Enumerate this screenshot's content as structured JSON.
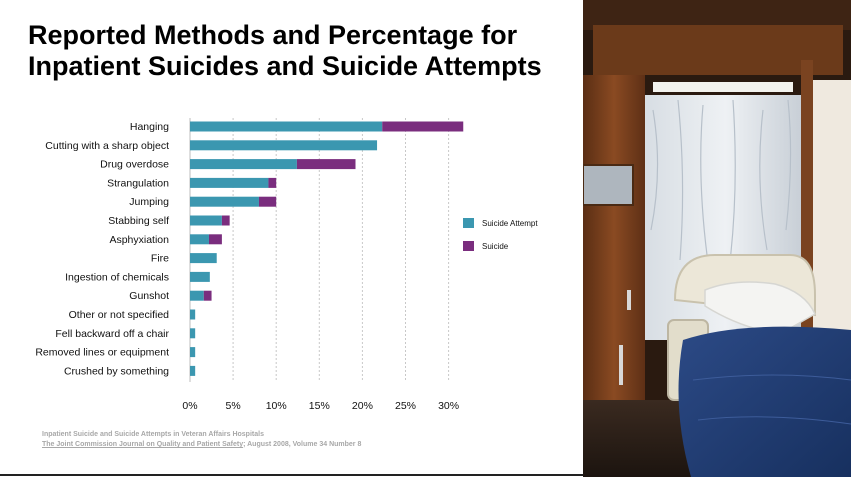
{
  "title": {
    "line1": "Reported Methods and Percentage for",
    "line2": "Inpatient Suicides and Suicide Attempts"
  },
  "source": {
    "line1": "Inpatient Suicide and Suicide Attempts in Veteran Affairs Hospitals",
    "journal": "The Joint Commission Journal on Quality and Patient Safety",
    "line2_rest": "; August 2008, Volume 34 Number 8"
  },
  "colors": {
    "suicide_attempt": "#3b97b0",
    "suicide": "#7a2d7e"
  },
  "chart_data": {
    "type": "bar",
    "orientation": "horizontal",
    "stacked": true,
    "categories": [
      "Hanging",
      "Cutting with a sharp object",
      "Drug overdose",
      "Strangulation",
      "Jumping",
      "Stabbing self",
      "Asphyxiation",
      "Fire",
      "Ingestion of chemicals",
      "Gunshot",
      "Other or not specified",
      "Fell backward off a chair",
      "Removed lines or equipment",
      "Crushed by something"
    ],
    "series": [
      {
        "name": "Suicide Attempt",
        "values": [
          22.3,
          21.7,
          12.4,
          9.1,
          8.0,
          3.7,
          2.2,
          3.1,
          2.3,
          1.6,
          0.6,
          0.6,
          0.6,
          0.6
        ]
      },
      {
        "name": "Suicide",
        "values": [
          9.4,
          0,
          6.8,
          0.9,
          2.0,
          0.9,
          1.5,
          0,
          0,
          0.9,
          0,
          0,
          0,
          0
        ]
      }
    ],
    "xticks": [
      "0%",
      "5%",
      "10%",
      "15%",
      "20%",
      "25%",
      "30%"
    ],
    "xlim": [
      0,
      32
    ],
    "grid": "vertical dotted",
    "legend_position": "right"
  }
}
